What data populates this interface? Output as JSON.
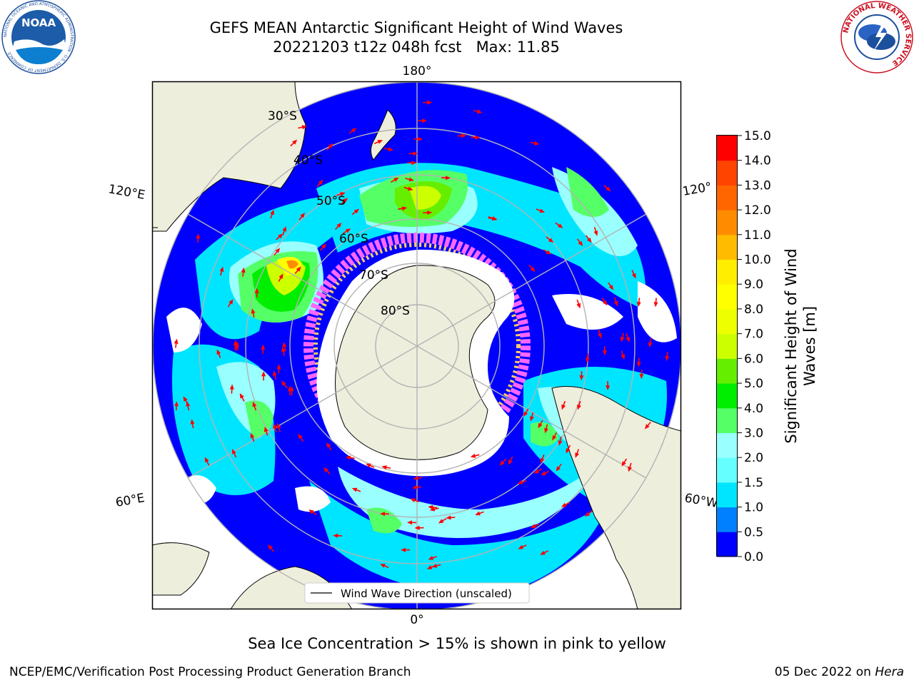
{
  "title": {
    "line1": "GEFS MEAN Antarctic Significant Height of Wind Waves",
    "line2": "20221203 t12z 048h fcst   Max: 11.85"
  },
  "map": {
    "lon_labels": {
      "top": "180°",
      "bottom": "0°",
      "left_upper": "120°E",
      "right_upper": "120°",
      "left_lower": "60°E",
      "right_lower": "60°W"
    },
    "lat_labels": [
      "30°S",
      "40°S",
      "50°S",
      "60°S",
      "70°S",
      "80°S"
    ],
    "legend_label": "Wind Wave Direction (unscaled)",
    "colors": {
      "land": "#eeeedd",
      "coast": "#000000",
      "grid": "#b3b3b3",
      "arrow": "#ff0000",
      "ice_pink": "#ff66ff",
      "ice_yellow": "#ffcc66"
    }
  },
  "colorbar": {
    "label_line1": "Significant Height of Wind",
    "label_line2": "Waves [m]",
    "ticks": [
      "0.0",
      "0.5",
      "1.0",
      "1.5",
      "2.0",
      "3.0",
      "4.0",
      "5.0",
      "6.0",
      "7.0",
      "8.0",
      "9.0",
      "10.0",
      "11.0",
      "12.0",
      "13.0",
      "14.0",
      "15.0"
    ],
    "colors": [
      "#0000ff",
      "#0080ff",
      "#00e5ff",
      "#66ffff",
      "#99ffff",
      "#55ff66",
      "#00ee00",
      "#66ee00",
      "#ccff00",
      "#eeff00",
      "#ffff00",
      "#ffee00",
      "#ffbb00",
      "#ff8c00",
      "#ff6600",
      "#ff4400",
      "#ff0000"
    ]
  },
  "caption": "Sea Ice Concentration > 15% is shown in pink to yellow",
  "footer": {
    "left": "NCEP/EMC/Verification Post Processing Product Generation Branch",
    "date": "05 Dec 2022 on ",
    "host": "Hera"
  },
  "logos": {
    "noaa_text": "NOAA",
    "noaa_ring_text": "NATIONAL OCEANIC AND ATMOSPHERIC ADMINISTRATION · U.S. DEPARTMENT OF COMMERCE",
    "nws_ring_text": "NATIONAL WEATHER SERVICE",
    "noaa_icon": "noaa-seal-icon",
    "nws_icon": "nws-seal-icon"
  }
}
